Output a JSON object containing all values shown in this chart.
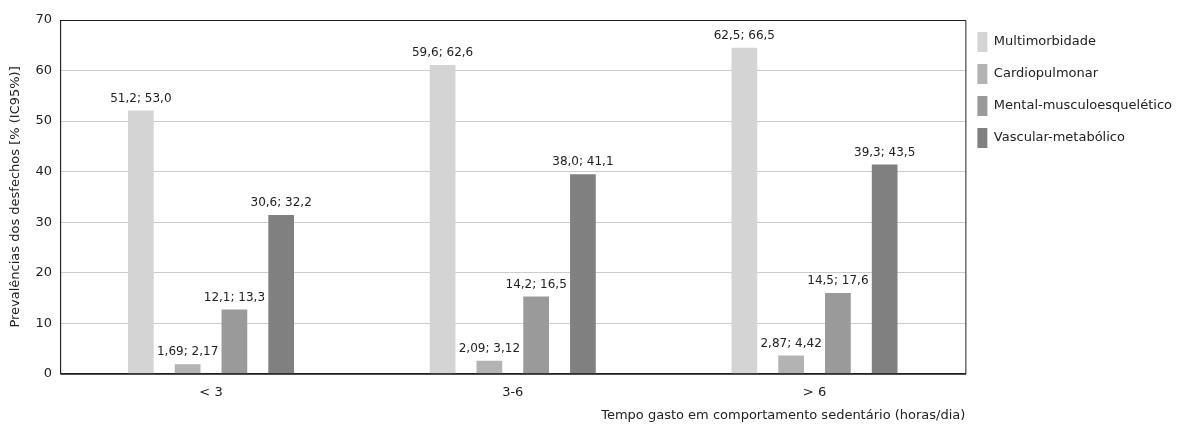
{
  "chart_data": {
    "type": "bar",
    "xlabel": "Tempo gasto em comportamento sedentário (horas/dia)",
    "ylabel": "Prevalências dos desfechos [% (IC95%)]",
    "categories": [
      "< 3",
      "3-6",
      "> 6"
    ],
    "series": [
      {
        "name": "Multimorbidade",
        "color": "#d4d4d4",
        "values": [
          52.1,
          61.1,
          64.5
        ]
      },
      {
        "name": "Cardiopulmonar",
        "color": "#b3b3b3",
        "values": [
          1.9,
          2.6,
          3.6
        ]
      },
      {
        "name": "Mental-musculoesquelético",
        "color": "#9a9a9a",
        "values": [
          12.7,
          15.3,
          16.0
        ]
      },
      {
        "name": "Vascular-metabólico",
        "color": "#808080",
        "values": [
          31.4,
          39.5,
          41.4
        ]
      }
    ],
    "annotations": [
      "51,2; 53,0",
      "59,6; 62,6",
      "62,5; 66,5",
      "1,69; 2,17",
      "2,09; 3,12",
      "2,87; 4,42",
      "12,1; 13,3",
      "14,2; 16,5",
      "14,5; 17,6",
      "30,6; 32,2",
      "38,0; 41,1",
      "39,3; 43,5"
    ],
    "ylim": [
      0,
      70
    ],
    "yticks": [
      0,
      10,
      20,
      30,
      40,
      50,
      60,
      70
    ],
    "grid": "y",
    "legend": "right"
  }
}
